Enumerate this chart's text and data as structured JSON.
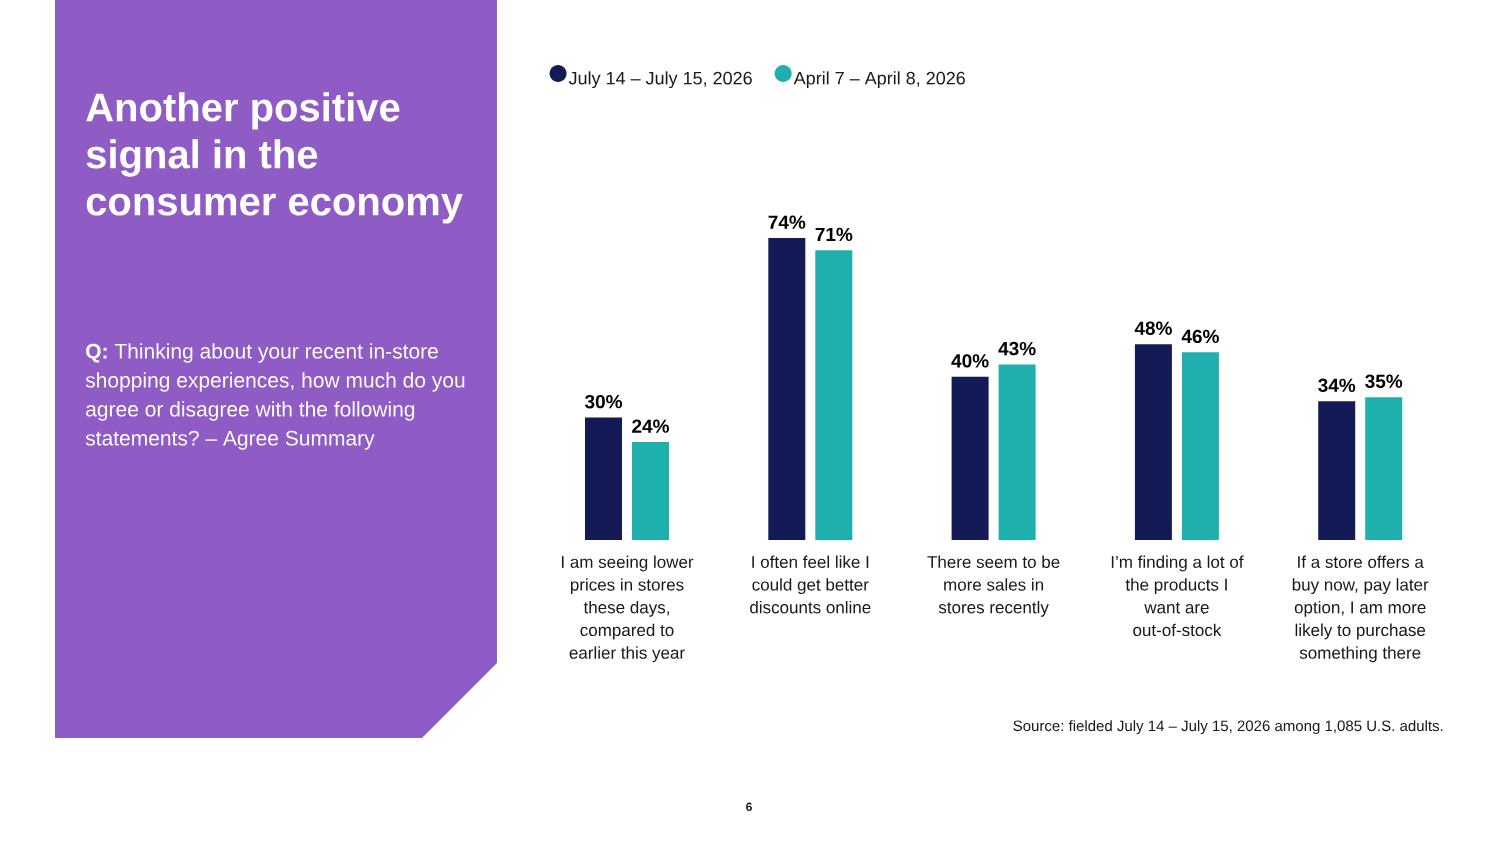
{
  "chart_data": {
    "type": "bar",
    "title": "Another positive signal in the consumer economy",
    "subtitle": "**Q:** Thinking about your recent in-store shopping experiences, how much do you agree or disagree with the following statements? – Agree Summary",
    "categories": [
      "I am seeing lower prices in stores these days, compared to earlier this year",
      "I often feel like I could get better discounts online",
      "There seem to be more sales in stores recently",
      "I’m finding a lot of the products I want are out-of-stock",
      "If a store offers a buy now, pay later option, I am more likely to purchase something there"
    ],
    "series": [
      {
        "name": "July 14 – July 15, 2026",
        "color": "#141a55",
        "values": [
          30,
          74,
          40,
          48,
          34
        ],
        "value_labels": [
          "30%",
          "74%",
          "40%",
          "48%",
          "34%"
        ]
      },
      {
        "name": "April 7 – April 8, 2026",
        "color": "#1fb0ae",
        "values": [
          24,
          71,
          43,
          46,
          35
        ],
        "value_labels": [
          "24%",
          "71%",
          "43%",
          "46%",
          "35%"
        ]
      }
    ],
    "legend": "top left",
    "tick_labels": "x",
    "annotations": [
      "Source: fielded July 14 – July 15, 2026 among 1,085 U.S. adults.",
      "6"
    ]
  }
}
